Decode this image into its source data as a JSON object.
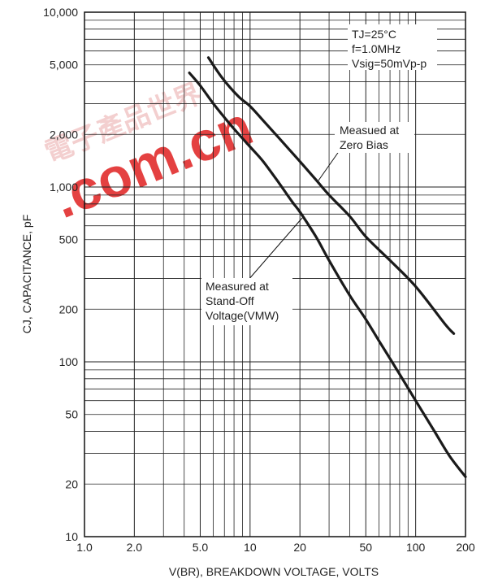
{
  "watermark": {
    "text": ".com.cn",
    "cjk": "電子產品世界",
    "color": "#e02020"
  },
  "chart_data": {
    "type": "line",
    "xscale": "log",
    "yscale": "log",
    "xlim": [
      1,
      200
    ],
    "ylim": [
      10,
      10000
    ],
    "grid": true,
    "xlabel": "V(BR), BREAKDOWN VOLTAGE, VOLTS",
    "ylabel": "CJ, CAPACITANCE, pF",
    "x_ticks": [
      {
        "value": 1,
        "label": "1.0"
      },
      {
        "value": 2,
        "label": "2.0"
      },
      {
        "value": 5,
        "label": "5.0"
      },
      {
        "value": 10,
        "label": "10"
      },
      {
        "value": 20,
        "label": "20"
      },
      {
        "value": 50,
        "label": "50"
      },
      {
        "value": 100,
        "label": "100"
      },
      {
        "value": 200,
        "label": "200"
      }
    ],
    "y_ticks": [
      {
        "value": 10,
        "label": "10"
      },
      {
        "value": 20,
        "label": "20"
      },
      {
        "value": 50,
        "label": "50"
      },
      {
        "value": 100,
        "label": "100"
      },
      {
        "value": 200,
        "label": "200"
      },
      {
        "value": 500,
        "label": "500"
      },
      {
        "value": 1000,
        "label": "1,000"
      },
      {
        "value": 2000,
        "label": "2,000"
      },
      {
        "value": 5000,
        "label": "5,000"
      },
      {
        "value": 10000,
        "label": "10,000"
      }
    ],
    "series": [
      {
        "name": "Measued at Zero Bias",
        "color": "#1a1a1a",
        "points": [
          [
            5.6,
            5500
          ],
          [
            6.8,
            4200
          ],
          [
            8.5,
            3300
          ],
          [
            10,
            2900
          ],
          [
            12,
            2400
          ],
          [
            15,
            1900
          ],
          [
            20,
            1400
          ],
          [
            25,
            1100
          ],
          [
            30,
            900
          ],
          [
            40,
            680
          ],
          [
            50,
            520
          ],
          [
            70,
            380
          ],
          [
            100,
            270
          ],
          [
            150,
            165
          ],
          [
            170,
            145
          ]
        ]
      },
      {
        "name": "Measured at Stand-Off Voltage(VMW)",
        "color": "#1a1a1a",
        "points": [
          [
            4.3,
            4500
          ],
          [
            5,
            3800
          ],
          [
            6,
            3000
          ],
          [
            7,
            2500
          ],
          [
            8,
            2150
          ],
          [
            10,
            1700
          ],
          [
            12,
            1400
          ],
          [
            15,
            1050
          ],
          [
            18,
            820
          ],
          [
            20,
            720
          ],
          [
            25,
            520
          ],
          [
            30,
            380
          ],
          [
            40,
            240
          ],
          [
            50,
            175
          ],
          [
            60,
            132
          ],
          [
            80,
            85
          ],
          [
            100,
            60
          ],
          [
            130,
            40
          ],
          [
            160,
            29
          ],
          [
            200,
            22
          ]
        ]
      }
    ],
    "annotations": {
      "conditions": [
        "TJ=25°C",
        "f=1.0MHz",
        "Vsig=50mVp-p"
      ],
      "zero_bias": [
        "Measued at",
        "Zero Bias"
      ],
      "standoff": [
        "Measured at",
        "Stand-Off",
        "Voltage(VMW)"
      ]
    }
  }
}
